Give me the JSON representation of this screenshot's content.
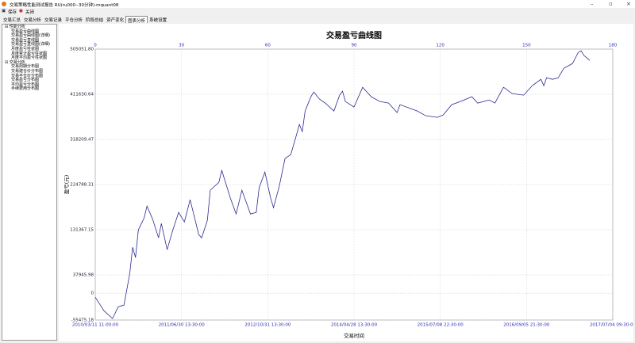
{
  "window": {
    "title": "交易策略性能测试报告 RU(ru000--30分钟)-mquant08",
    "toolbar": [
      "保存",
      "关闭"
    ],
    "tabs": [
      "交易汇总",
      "交易分析",
      "交易记录",
      "平仓分析",
      "阶段总结",
      "资产变化",
      "图表分析",
      "系统设置"
    ]
  },
  "tree": [
    {
      "label": "性能分析",
      "children": [
        "交易盈亏曲线图",
        "交易盈亏曲线图(详细)",
        "交易盈亏直线图",
        "交易盈亏直线图(详细)",
        "月度盈亏柱状图",
        "月度累计盈亏柱状图",
        "月度平均盈亏柱状图"
      ]
    },
    {
      "label": "交易分析",
      "children": [
        "交易周期分布图",
        "交易建仓价分布图",
        "交易平仓价分布图",
        "交易盈亏分布图",
        "平均盈亏分布图",
        "手续费用分布图"
      ]
    }
  ],
  "chart_data": {
    "type": "line",
    "title": "交易盈亏曲线图",
    "x_label": "交易时间",
    "y_label": "盈亏(元)",
    "x": [
      0,
      3,
      6,
      8,
      10,
      12,
      13,
      14,
      15,
      17,
      18,
      20,
      22,
      23,
      25,
      27,
      29,
      31,
      33,
      36,
      37,
      39,
      40,
      43,
      44,
      47,
      49,
      51,
      54,
      56,
      57,
      59,
      61,
      62,
      64,
      66,
      68,
      70,
      71,
      72,
      73,
      75,
      76,
      78,
      80,
      83,
      85,
      86,
      87,
      90,
      93,
      96,
      99,
      102,
      105,
      106,
      109,
      112,
      115,
      119,
      121,
      124,
      127,
      131,
      133,
      137,
      139,
      142,
      145,
      149,
      152,
      155,
      156,
      157,
      159,
      161,
      163,
      166,
      168,
      169,
      170,
      172
    ],
    "series": [
      {
        "color": "#2b2b8f",
        "values": [
          -8200,
          -36100,
          -52400,
          -27900,
          -24600,
          41000,
          95100,
          73800,
          131100,
          155700,
          180300,
          152400,
          114700,
          144200,
          90100,
          131100,
          167200,
          147500,
          193400,
          121300,
          114700,
          150800,
          213100,
          229500,
          254000,
          196700,
          163900,
          213100,
          163900,
          167200,
          218000,
          250800,
          196700,
          177000,
          221300,
          278600,
          286800,
          327800,
          349100,
          334400,
          377000,
          406500,
          416300,
          401600,
          393400,
          377000,
          409800,
          417900,
          396600,
          385200,
          426100,
          406500,
          396600,
          393400,
          373700,
          390100,
          383500,
          377000,
          367100,
          363900,
          368800,
          390100,
          396600,
          406500,
          393400,
          399900,
          393400,
          426100,
          413000,
          409800,
          429400,
          442500,
          429400,
          445800,
          442500,
          445800,
          465500,
          475300,
          498300,
          501500,
          491700,
          481900
        ]
      }
    ],
    "xlim": [
      0,
      180
    ],
    "xticks": [
      0,
      30,
      60,
      90,
      120,
      150,
      180
    ],
    "x_date_labels": [
      "2010/03/11 11:00:00",
      "2011/06/30 13:30:00",
      "2012/10/31 13:30:00",
      "2014/04/28 13:30:00",
      "2015/07/08 22:30:00",
      "2016/09/05 21:30:00",
      "2017/07/04 09:30:00"
    ],
    "ylim": [
      -55475.18,
      505051.8
    ],
    "yticks": [
      {
        "value": 505051.8,
        "label": "505051.80"
      },
      411630.64,
      318209.47,
      224788.31,
      131367.15,
      37945.98,
      0,
      -55475.18
    ],
    "grid": true
  }
}
